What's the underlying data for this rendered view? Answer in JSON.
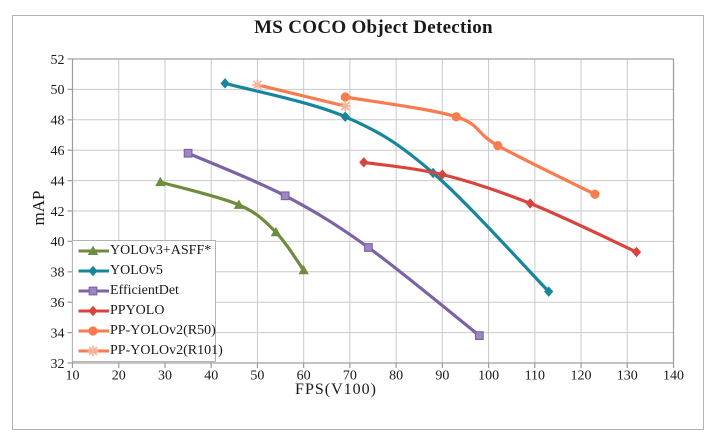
{
  "figure": {
    "title": "MS COCO Object Detection",
    "x_axis_title": "FPS(V100)",
    "y_axis_title": "mAP"
  },
  "chart_data": {
    "type": "line",
    "title": "MS COCO Object Detection",
    "xlabel": "FPS(V100)",
    "ylabel": "mAP",
    "xlim": [
      10,
      140
    ],
    "ylim": [
      32,
      52
    ],
    "x_ticks": [
      10,
      20,
      30,
      40,
      50,
      60,
      70,
      80,
      90,
      100,
      110,
      120,
      130,
      140
    ],
    "y_ticks": [
      32,
      34,
      36,
      38,
      40,
      42,
      44,
      46,
      48,
      50,
      52
    ],
    "grid": true,
    "grid_color": "#cacaca",
    "axis_color": "#9c9c9c",
    "legend_position": "inside-bottom-left",
    "series": [
      {
        "name": "YOLOv3+ASFF*",
        "color": "#6e8b3e",
        "marker": "triangle",
        "smooth": true,
        "points": [
          [
            29,
            43.9
          ],
          [
            46,
            42.4
          ],
          [
            54,
            40.6
          ],
          [
            60,
            38.1
          ]
        ]
      },
      {
        "name": "YOLOv5",
        "color": "#16869c",
        "marker": "diamond",
        "smooth": true,
        "points": [
          [
            43,
            50.4
          ],
          [
            69,
            48.2
          ],
          [
            88,
            44.5
          ],
          [
            113,
            36.7
          ]
        ]
      },
      {
        "name": "EfficientDet",
        "color": "#7d63a6",
        "marker": "square",
        "marker_fill": "#9d87c2",
        "smooth": true,
        "points": [
          [
            35,
            45.8
          ],
          [
            56,
            43.0
          ],
          [
            74,
            39.6
          ],
          [
            98,
            33.8
          ]
        ]
      },
      {
        "name": "PPYOLO",
        "color": "#d9453d",
        "marker": "diamond",
        "smooth": true,
        "points": [
          [
            73,
            45.2
          ],
          [
            90,
            44.4
          ],
          [
            109,
            42.5
          ],
          [
            132,
            39.3
          ]
        ]
      },
      {
        "name": "PP-YOLOv2(R50)",
        "color": "#fa7b4d",
        "marker": "circle",
        "smooth": true,
        "points": [
          [
            69,
            49.5
          ],
          [
            93,
            48.2
          ],
          [
            102,
            46.3
          ],
          [
            123,
            43.1
          ]
        ]
      },
      {
        "name": "PP-YOLOv2(R101)",
        "color": "#fa7b4d",
        "marker": "asterisk",
        "marker_fill": "#fbb29a",
        "smooth": false,
        "points": [
          [
            50,
            50.3
          ],
          [
            69,
            48.9
          ]
        ]
      }
    ]
  }
}
